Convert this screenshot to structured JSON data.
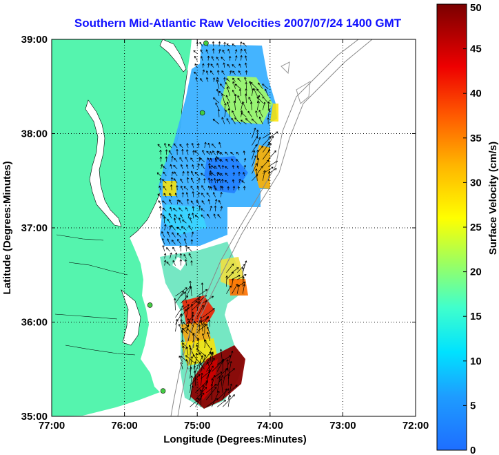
{
  "chart_data": {
    "type": "heatmap",
    "title": "Southern Mid-Atlantic Raw Velocities 2007/07/24 1400 GMT",
    "xlabel": "Longitude (Degrees:Minutes)",
    "ylabel": "Latitude (Degrees:Minutes)",
    "colorbar_label": "Surface Velocity (cm/s)",
    "xlim": [
      -77,
      -72
    ],
    "ylim": [
      35,
      39
    ],
    "x_ticks": [
      {
        "value": -77,
        "label": "77:00"
      },
      {
        "value": -76,
        "label": "76:00"
      },
      {
        "value": -75,
        "label": "75:00"
      },
      {
        "value": -74,
        "label": "74:00"
      },
      {
        "value": -73,
        "label": "73:00"
      },
      {
        "value": -72,
        "label": "72:00"
      }
    ],
    "y_ticks": [
      {
        "value": 35,
        "label": "35:00"
      },
      {
        "value": 36,
        "label": "36:00"
      },
      {
        "value": 37,
        "label": "37:00"
      },
      {
        "value": 38,
        "label": "38:00"
      },
      {
        "value": 39,
        "label": "39:00"
      }
    ],
    "colorbar": {
      "range": [
        0,
        50
      ],
      "ticks": [
        {
          "value": 0,
          "label": "0"
        },
        {
          "value": 5,
          "label": "5"
        },
        {
          "value": 10,
          "label": "10"
        },
        {
          "value": 15,
          "label": "15"
        },
        {
          "value": 20,
          "label": "20"
        },
        {
          "value": 25,
          "label": "25"
        },
        {
          "value": 30,
          "label": "30"
        },
        {
          "value": 35,
          "label": "35"
        },
        {
          "value": 40,
          "label": "40"
        },
        {
          "value": 45,
          "label": "45"
        },
        {
          "value": 50,
          "label": "50"
        }
      ]
    },
    "grid": true,
    "colors": {
      "land": "#55f4ae",
      "water": "#ffffff",
      "title": "#1010ff",
      "vectors": "#000000",
      "stations": "#44cc44"
    },
    "stations": [
      {
        "lon": -74.88,
        "lat": 38.96
      },
      {
        "lon": -74.93,
        "lat": 38.22
      },
      {
        "lon": -75.65,
        "lat": 36.18
      },
      {
        "lon": -75.47,
        "lat": 35.27
      }
    ],
    "velocity_regions": [
      {
        "lat_range": [
          38.55,
          38.95
        ],
        "lon_range": [
          -75.0,
          -74.3
        ],
        "speed": 8
      },
      {
        "lat_range": [
          38.1,
          38.55
        ],
        "lon_range": [
          -74.7,
          -74.0
        ],
        "speed": 22
      },
      {
        "lat_range": [
          37.5,
          38.0
        ],
        "lon_range": [
          -74.25,
          -74.0
        ],
        "speed": 32
      },
      {
        "lat_range": [
          37.1,
          37.9
        ],
        "lon_range": [
          -75.5,
          -74.6
        ],
        "speed": 10
      },
      {
        "lat_range": [
          37.4,
          37.8
        ],
        "lon_range": [
          -74.8,
          -74.3
        ],
        "speed": 5
      },
      {
        "lat_range": [
          36.6,
          37.1
        ],
        "lon_range": [
          -75.45,
          -75.0
        ],
        "speed": 12
      },
      {
        "lat_range": [
          36.3,
          36.6
        ],
        "lon_range": [
          -74.6,
          -74.3
        ],
        "speed": 32
      },
      {
        "lat_range": [
          35.9,
          36.3
        ],
        "lon_range": [
          -75.3,
          -74.9
        ],
        "speed": 40
      },
      {
        "lat_range": [
          35.5,
          36.0
        ],
        "lon_range": [
          -75.2,
          -74.8
        ],
        "speed": 26
      },
      {
        "lat_range": [
          35.1,
          35.6
        ],
        "lon_range": [
          -75.1,
          -74.5
        ],
        "speed": 48
      }
    ]
  }
}
